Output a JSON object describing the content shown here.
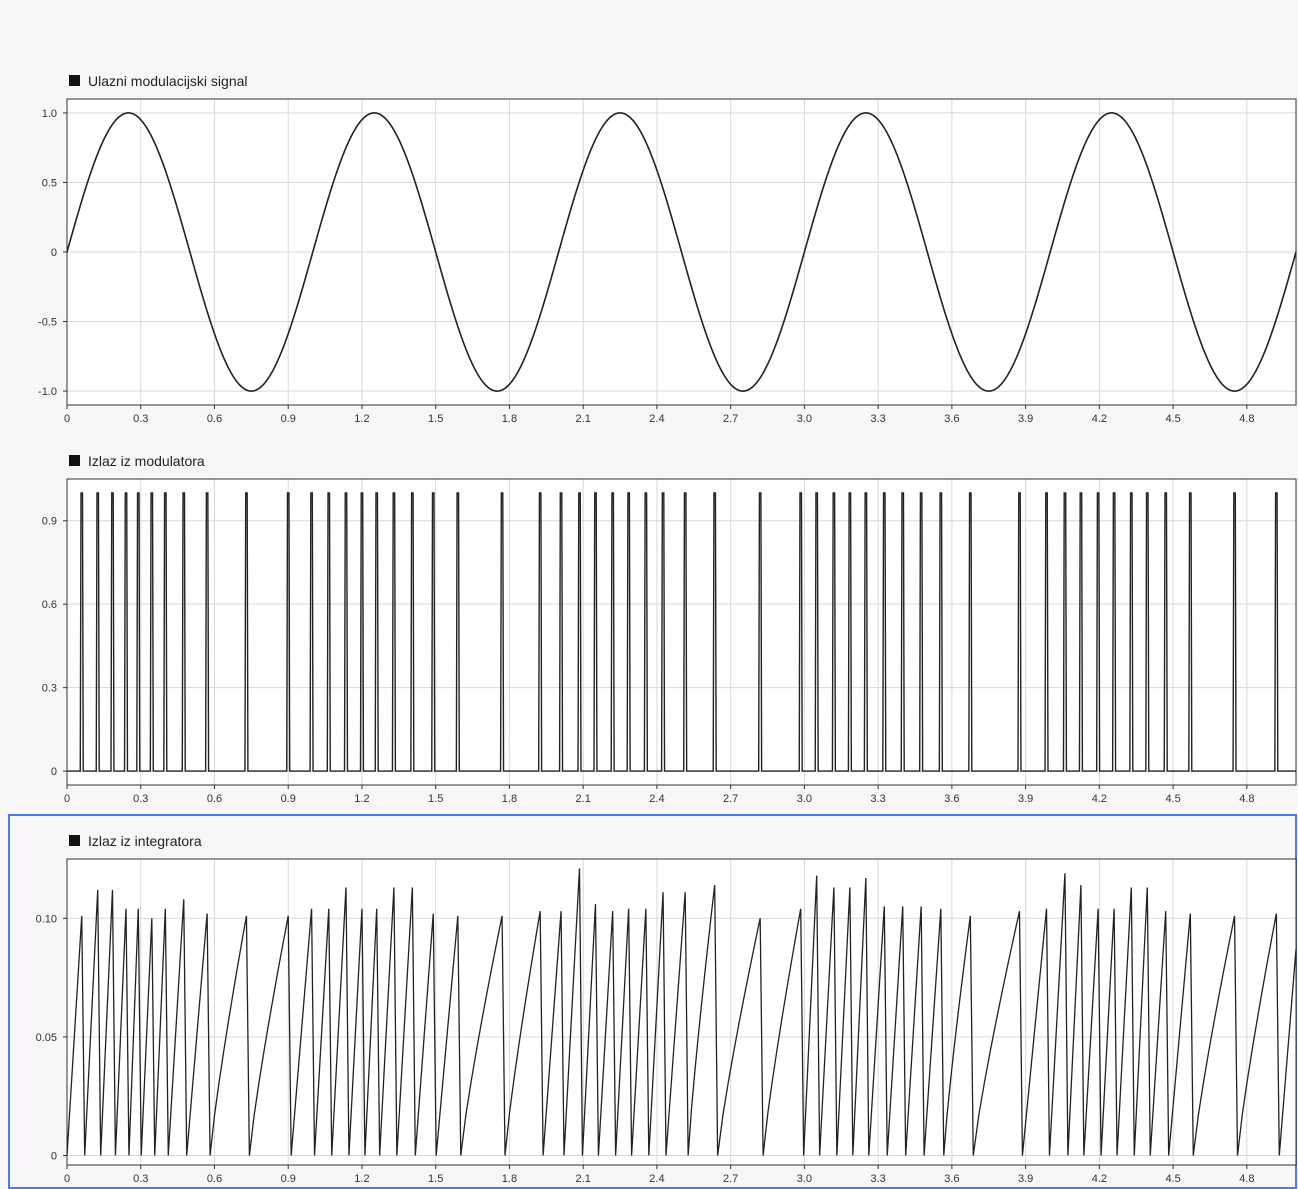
{
  "chart_data": [
    {
      "type": "line",
      "title": "Ulazni modulacijski signal",
      "xlim": [
        0,
        5
      ],
      "ylim": [
        -1.1,
        1.1
      ],
      "xticks": [
        0,
        0.3,
        0.6,
        0.9,
        1.2,
        1.5,
        1.8,
        2.1,
        2.4,
        2.7,
        3.0,
        3.3,
        3.6,
        3.9,
        4.2,
        4.5,
        4.8
      ],
      "xtick_labels": [
        "0",
        "0.3",
        "0.6",
        "0.9",
        "1.2",
        "1.5",
        "1.8",
        "2.1",
        "2.4",
        "2.7",
        "3.0",
        "3.3",
        "3.6",
        "3.9",
        "4.2",
        "4.5",
        "4.8"
      ],
      "yticks": [
        -1.0,
        -0.5,
        0,
        0.5,
        1.0
      ],
      "ytick_labels": [
        "-1.0",
        "-0.5",
        "0",
        "0.5",
        "1.0"
      ],
      "grid": true,
      "line_color": "#222222",
      "function": "sine",
      "amplitude": 1.0,
      "period": 1.0
    },
    {
      "type": "line",
      "title": "Izlaz iz modulatora",
      "xlim": [
        0,
        5
      ],
      "ylim": [
        -0.05,
        1.05
      ],
      "xticks": [
        0,
        0.3,
        0.6,
        0.9,
        1.2,
        1.5,
        1.8,
        2.1,
        2.4,
        2.7,
        3.0,
        3.3,
        3.6,
        3.9,
        4.2,
        4.5,
        4.8
      ],
      "xtick_labels": [
        "0",
        "0.3",
        "0.6",
        "0.9",
        "1.2",
        "1.5",
        "1.8",
        "2.1",
        "2.4",
        "2.7",
        "3.0",
        "3.3",
        "3.6",
        "3.9",
        "4.2",
        "4.5",
        "4.8"
      ],
      "yticks": [
        0,
        0.3,
        0.6,
        0.9
      ],
      "ytick_labels": [
        "0",
        "0.3",
        "0.6",
        "0.9"
      ],
      "grid": true,
      "line_color": "#222222",
      "pulse_height": 1.0,
      "pulse_times": [
        0.06,
        0.125,
        0.185,
        0.24,
        0.29,
        0.345,
        0.4,
        0.475,
        0.57,
        0.73,
        0.9,
        0.995,
        1.065,
        1.135,
        1.2,
        1.26,
        1.33,
        1.405,
        1.49,
        1.59,
        1.77,
        1.925,
        2.01,
        2.085,
        2.15,
        2.22,
        2.285,
        2.355,
        2.425,
        2.515,
        2.635,
        2.82,
        2.985,
        3.05,
        3.12,
        3.185,
        3.25,
        3.325,
        3.4,
        3.475,
        3.555,
        3.675,
        3.875,
        3.985,
        4.06,
        4.125,
        4.195,
        4.26,
        4.33,
        4.395,
        4.47,
        4.57,
        4.75,
        4.92
      ]
    },
    {
      "type": "line",
      "title": "Izlaz iz integratora",
      "xlim": [
        0,
        5
      ],
      "ylim": [
        -0.004,
        0.125
      ],
      "xticks": [
        0,
        0.3,
        0.6,
        0.9,
        1.2,
        1.5,
        1.8,
        2.1,
        2.4,
        2.7,
        3.0,
        3.3,
        3.6,
        3.9,
        4.2,
        4.5,
        4.8
      ],
      "xtick_labels": [
        "0",
        "0.3",
        "0.6",
        "0.9",
        "1.2",
        "1.5",
        "1.8",
        "2.1",
        "2.4",
        "2.7",
        "3.0",
        "3.3",
        "3.6",
        "3.9",
        "4.2",
        "4.5",
        "4.8"
      ],
      "yticks": [
        0,
        0.05,
        0.1
      ],
      "ytick_labels": [
        "0",
        "0.05",
        "0.10"
      ],
      "grid": true,
      "selected": true,
      "line_color": "#222222",
      "reset_times": [
        0.06,
        0.125,
        0.185,
        0.24,
        0.29,
        0.345,
        0.4,
        0.475,
        0.57,
        0.73,
        0.9,
        0.995,
        1.065,
        1.135,
        1.2,
        1.26,
        1.33,
        1.405,
        1.49,
        1.59,
        1.77,
        1.925,
        2.01,
        2.085,
        2.15,
        2.22,
        2.285,
        2.355,
        2.425,
        2.515,
        2.635,
        2.82,
        2.985,
        3.05,
        3.12,
        3.185,
        3.25,
        3.325,
        3.4,
        3.475,
        3.555,
        3.675,
        3.875,
        3.985,
        4.06,
        4.125,
        4.195,
        4.26,
        4.33,
        4.395,
        4.47,
        4.57,
        4.75,
        4.92
      ],
      "peak_values": [
        0.101,
        0.112,
        0.112,
        0.104,
        0.104,
        0.1,
        0.104,
        0.108,
        0.102,
        0.101,
        0.101,
        0.104,
        0.104,
        0.113,
        0.104,
        0.104,
        0.113,
        0.113,
        0.102,
        0.101,
        0.101,
        0.103,
        0.103,
        0.121,
        0.106,
        0.103,
        0.104,
        0.104,
        0.111,
        0.111,
        0.114,
        0.1,
        0.104,
        0.118,
        0.113,
        0.113,
        0.117,
        0.105,
        0.105,
        0.105,
        0.104,
        0.101,
        0.103,
        0.104,
        0.119,
        0.114,
        0.104,
        0.104,
        0.113,
        0.113,
        0.103,
        0.102,
        0.101,
        0.102
      ],
      "final_value": 0.087
    }
  ]
}
